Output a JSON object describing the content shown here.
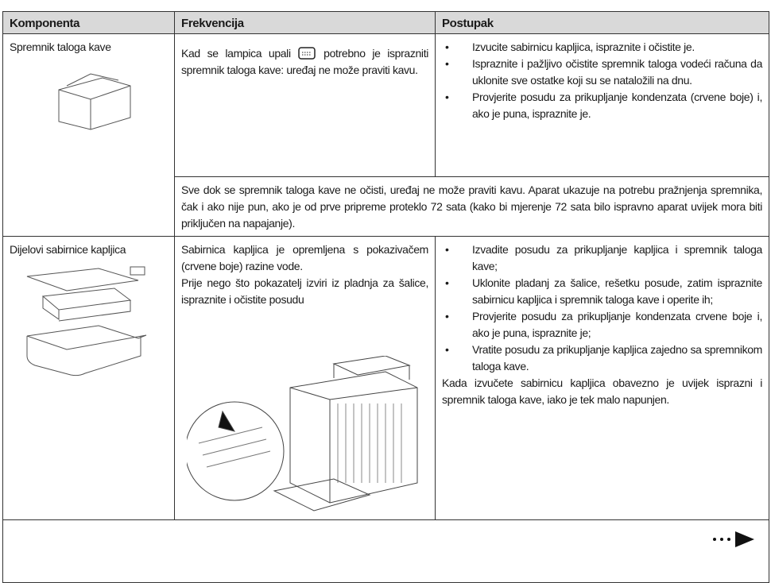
{
  "table": {
    "header": [
      "Komponenta",
      "Frekvencija",
      "Postupak"
    ],
    "rows": [
      {
        "component": "Spremnik taloga kave",
        "frequency": [
          "Kad se lampica upali",
          "potrebno je isprazniti spremnik taloga kave: uređaj ne može praviti kavu."
        ],
        "steps": [
          "Izvucite sabirnicu kapljica, ispraznite i očistite je.",
          "Ispraznite i pažljivo očistite spremnik taloga vodeći računa da uklonite sve ostatke koji su se nataložili na dnu.",
          "Provjerite posudu za prikupljanje kondenzata (crvene boje) i, ako je puna, ispraznite je."
        ],
        "note": "Sve dok se spremnik taloga kave ne očisti, uređaj ne može praviti kavu. Aparat ukazuje na potrebu pražnjenja spremnika, čak i ako nije pun, ako je od prve pripreme proteklo 72 sata (kako bi mjerenje 72 sata bilo ispravno aparat uvijek mora biti priključen na napajanje)."
      },
      {
        "component": "Dijelovi sabirnice kapljica",
        "frequency": [
          "Sabirnica kapljica je opremljena s pokazivačem (crvene boje) razine vode.",
          "Prije nego što pokazatelj izviri iz pladnja za šalice, ispraznite i očistite posudu"
        ],
        "steps": [
          "Izvadite posudu za prikupljanje kapljica i spremnik taloga kave;",
          "Uklonite pladanj za šalice, rešetku posude, zatim ispraznite sabirnicu kapljica i spremnik taloga kave i operite ih;",
          "Provjerite posudu za prikupljanje kondenzata crvene boje i, ako je puna, ispraznite je;",
          "Vratite posudu za prikupljanje kapljica zajedno sa spremnikom taloga kave."
        ],
        "note": "Kada izvučete sabirnicu kapljica obavezno je uvijek isprazni i spremnik taloga kave, iako je tek malo napunjen."
      }
    ]
  }
}
